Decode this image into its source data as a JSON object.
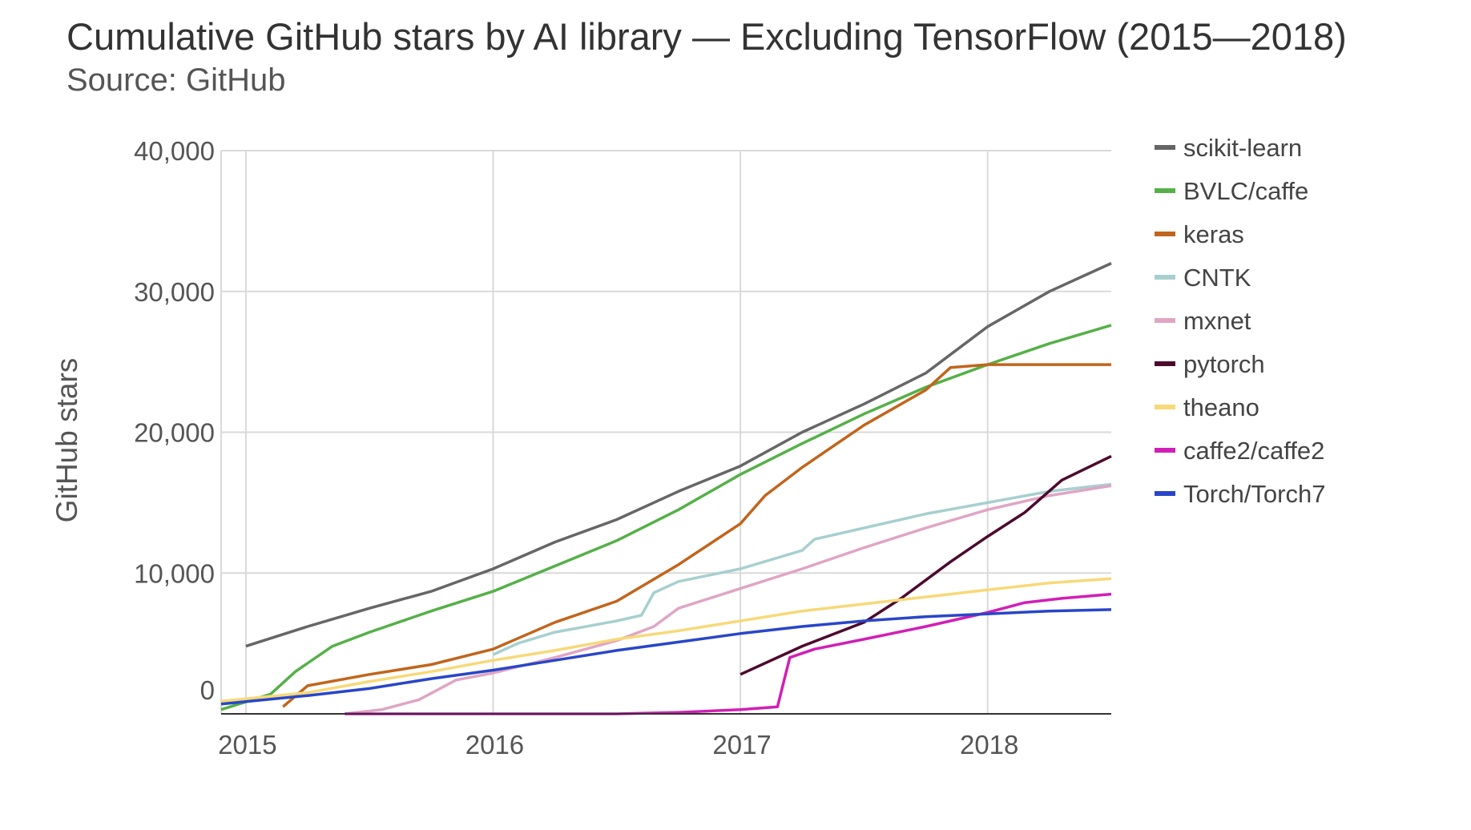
{
  "header": {
    "title": "Cumulative GitHub stars by AI library — Excluding TensorFlow (2015—2018)",
    "subtitle": "Source: GitHub"
  },
  "chart_data": {
    "type": "line",
    "title": "Cumulative GitHub stars by AI library — Excluding TensorFlow (2015—2018)",
    "subtitle": "Source: GitHub",
    "xlabel": "",
    "ylabel": "GitHub stars",
    "xlim": [
      2014.9,
      2018.5
    ],
    "ylim": [
      0,
      40000
    ],
    "x_ticks": [
      {
        "value": 2015,
        "label": "2015"
      },
      {
        "value": 2016,
        "label": "2016"
      },
      {
        "value": 2017,
        "label": "2017"
      },
      {
        "value": 2018,
        "label": "2018"
      }
    ],
    "y_ticks": [
      {
        "value": 0,
        "label": "0"
      },
      {
        "value": 10000,
        "label": "10,000"
      },
      {
        "value": 20000,
        "label": "20,000"
      },
      {
        "value": 30000,
        "label": "30,000"
      },
      {
        "value": 40000,
        "label": "40,000"
      }
    ],
    "grid": true,
    "legend_position": "right",
    "series": [
      {
        "name": "scikit-learn",
        "color": "#666666",
        "points": [
          [
            2015.0,
            4800
          ],
          [
            2015.25,
            6200
          ],
          [
            2015.5,
            7500
          ],
          [
            2015.75,
            8700
          ],
          [
            2016.0,
            10300
          ],
          [
            2016.25,
            12200
          ],
          [
            2016.5,
            13800
          ],
          [
            2016.75,
            15800
          ],
          [
            2017.0,
            17600
          ],
          [
            2017.25,
            20000
          ],
          [
            2017.5,
            22000
          ],
          [
            2017.75,
            24200
          ],
          [
            2018.0,
            27500
          ],
          [
            2018.25,
            30000
          ],
          [
            2018.5,
            32000
          ]
        ]
      },
      {
        "name": "BVLC/caffe",
        "color": "#55b048",
        "points": [
          [
            2014.9,
            300
          ],
          [
            2015.1,
            1400
          ],
          [
            2015.2,
            3000
          ],
          [
            2015.35,
            4800
          ],
          [
            2015.5,
            5800
          ],
          [
            2015.75,
            7300
          ],
          [
            2016.0,
            8700
          ],
          [
            2016.25,
            10500
          ],
          [
            2016.5,
            12300
          ],
          [
            2016.75,
            14500
          ],
          [
            2017.0,
            17000
          ],
          [
            2017.25,
            19200
          ],
          [
            2017.5,
            21300
          ],
          [
            2017.75,
            23200
          ],
          [
            2018.0,
            24800
          ],
          [
            2018.25,
            26300
          ],
          [
            2018.5,
            27600
          ]
        ]
      },
      {
        "name": "keras",
        "color": "#c1651c",
        "points": [
          [
            2015.15,
            500
          ],
          [
            2015.25,
            2000
          ],
          [
            2015.5,
            2800
          ],
          [
            2015.75,
            3500
          ],
          [
            2016.0,
            4600
          ],
          [
            2016.25,
            6500
          ],
          [
            2016.5,
            8000
          ],
          [
            2016.75,
            10600
          ],
          [
            2017.0,
            13500
          ],
          [
            2017.1,
            15500
          ],
          [
            2017.25,
            17500
          ],
          [
            2017.5,
            20500
          ],
          [
            2017.75,
            23000
          ],
          [
            2017.85,
            24600
          ],
          [
            2018.0,
            24800
          ],
          [
            2018.5,
            24800
          ]
        ]
      },
      {
        "name": "CNTK",
        "color": "#a8cfcf",
        "points": [
          [
            2016.0,
            4200
          ],
          [
            2016.1,
            5000
          ],
          [
            2016.25,
            5800
          ],
          [
            2016.5,
            6600
          ],
          [
            2016.6,
            7000
          ],
          [
            2016.65,
            8600
          ],
          [
            2016.75,
            9400
          ],
          [
            2017.0,
            10300
          ],
          [
            2017.25,
            11600
          ],
          [
            2017.3,
            12400
          ],
          [
            2017.5,
            13200
          ],
          [
            2017.75,
            14200
          ],
          [
            2018.0,
            15000
          ],
          [
            2018.25,
            15800
          ],
          [
            2018.5,
            16300
          ]
        ]
      },
      {
        "name": "mxnet",
        "color": "#e0a5c4",
        "points": [
          [
            2015.4,
            0
          ],
          [
            2015.55,
            300
          ],
          [
            2015.7,
            1000
          ],
          [
            2015.85,
            2400
          ],
          [
            2016.0,
            2900
          ],
          [
            2016.25,
            4000
          ],
          [
            2016.5,
            5200
          ],
          [
            2016.65,
            6200
          ],
          [
            2016.75,
            7500
          ],
          [
            2017.0,
            8900
          ],
          [
            2017.25,
            10300
          ],
          [
            2017.5,
            11800
          ],
          [
            2017.75,
            13200
          ],
          [
            2018.0,
            14500
          ],
          [
            2018.25,
            15500
          ],
          [
            2018.5,
            16200
          ]
        ]
      },
      {
        "name": "pytorch",
        "color": "#4d0a2e",
        "points": [
          [
            2017.0,
            2800
          ],
          [
            2017.25,
            4800
          ],
          [
            2017.5,
            6500
          ],
          [
            2017.65,
            8200
          ],
          [
            2017.85,
            10800
          ],
          [
            2018.0,
            12600
          ],
          [
            2018.15,
            14300
          ],
          [
            2018.3,
            16600
          ],
          [
            2018.5,
            18300
          ]
        ]
      },
      {
        "name": "theano",
        "color": "#f7d978",
        "points": [
          [
            2014.9,
            900
          ],
          [
            2015.25,
            1500
          ],
          [
            2015.5,
            2300
          ],
          [
            2015.75,
            3000
          ],
          [
            2016.0,
            3800
          ],
          [
            2016.25,
            4500
          ],
          [
            2016.5,
            5300
          ],
          [
            2016.75,
            5900
          ],
          [
            2017.0,
            6600
          ],
          [
            2017.25,
            7300
          ],
          [
            2017.5,
            7800
          ],
          [
            2017.75,
            8300
          ],
          [
            2018.0,
            8800
          ],
          [
            2018.25,
            9300
          ],
          [
            2018.5,
            9600
          ]
        ]
      },
      {
        "name": "caffe2/caffe2",
        "color": "#d11fb5",
        "points": [
          [
            2015.4,
            0
          ],
          [
            2016.5,
            0
          ],
          [
            2016.75,
            100
          ],
          [
            2017.0,
            300
          ],
          [
            2017.15,
            500
          ],
          [
            2017.2,
            4000
          ],
          [
            2017.3,
            4600
          ],
          [
            2017.5,
            5300
          ],
          [
            2017.75,
            6200
          ],
          [
            2018.0,
            7200
          ],
          [
            2018.15,
            7900
          ],
          [
            2018.3,
            8200
          ],
          [
            2018.5,
            8500
          ]
        ]
      },
      {
        "name": "Torch/Torch7",
        "color": "#2946c8",
        "points": [
          [
            2014.9,
            700
          ],
          [
            2015.25,
            1300
          ],
          [
            2015.5,
            1800
          ],
          [
            2015.75,
            2500
          ],
          [
            2016.0,
            3100
          ],
          [
            2016.25,
            3800
          ],
          [
            2016.5,
            4500
          ],
          [
            2016.75,
            5100
          ],
          [
            2017.0,
            5700
          ],
          [
            2017.25,
            6200
          ],
          [
            2017.5,
            6600
          ],
          [
            2017.75,
            6900
          ],
          [
            2018.0,
            7100
          ],
          [
            2018.25,
            7300
          ],
          [
            2018.5,
            7400
          ]
        ]
      }
    ]
  }
}
